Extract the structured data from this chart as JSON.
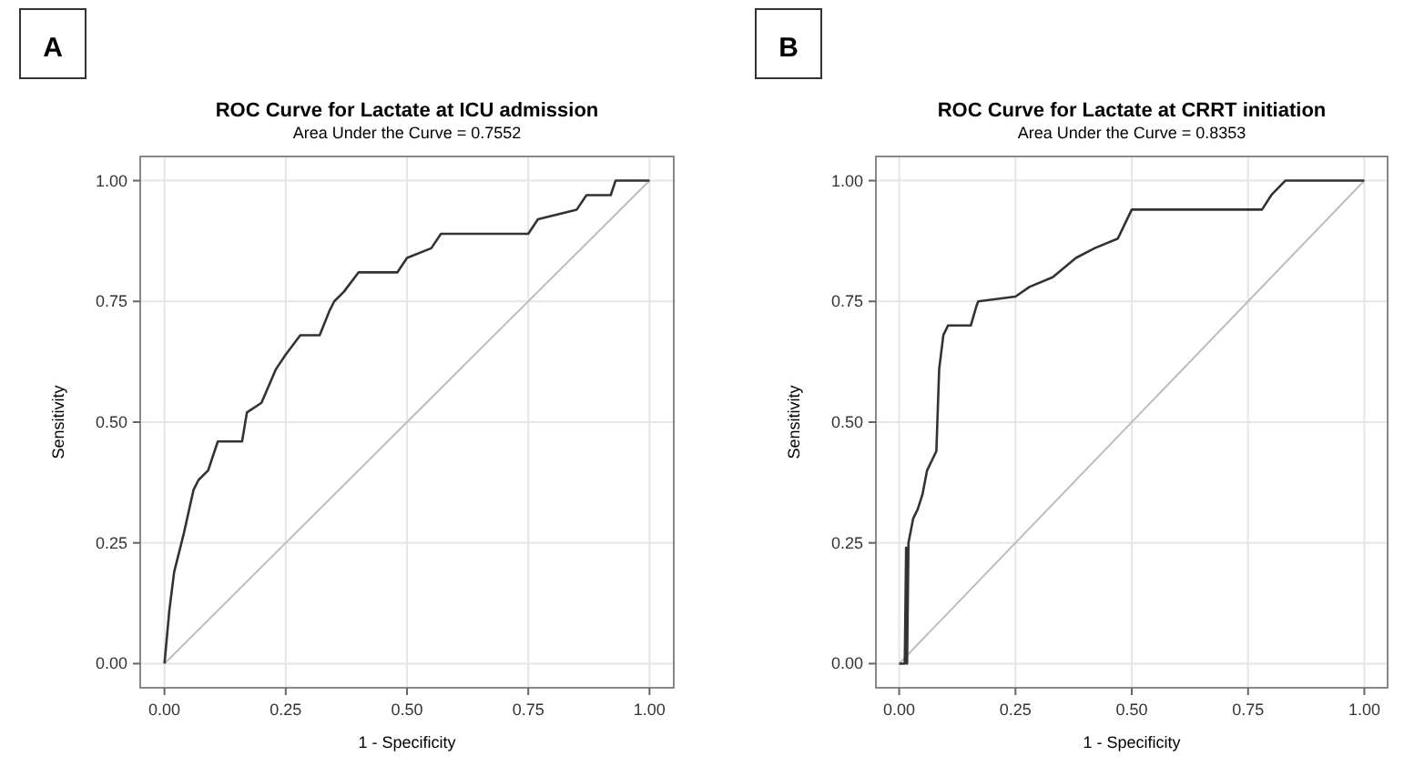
{
  "chart_data": [
    {
      "type": "line",
      "title": "ROC Curve for Lactate at ICU admission",
      "subtitle": "Area Under the Curve = 0.7552",
      "xlabel": "1 - Specificity",
      "ylabel": "Sensitivity",
      "annotations": [
        "A"
      ],
      "grid": true,
      "xlim": [
        -0.05,
        1.05
      ],
      "ylim": [
        -0.05,
        1.05
      ],
      "xticks": [
        {
          "value": 0,
          "label": "0.00"
        },
        {
          "value": 0.25,
          "label": "0.25"
        },
        {
          "value": 0.5,
          "label": "0.50"
        },
        {
          "value": 0.75,
          "label": "0.75"
        },
        {
          "value": 1,
          "label": "1.00"
        }
      ],
      "yticks": [
        {
          "value": 0,
          "label": "0.00"
        },
        {
          "value": 0.25,
          "label": "0.25"
        },
        {
          "value": 0.5,
          "label": "0.50"
        },
        {
          "value": 0.75,
          "label": "0.75"
        },
        {
          "value": 1,
          "label": "1.00"
        }
      ],
      "series": [
        {
          "color": "#bdbdbd",
          "x": [
            0,
            1
          ],
          "values": [
            0,
            1
          ]
        },
        {
          "color": "#333333",
          "x": [
            0,
            0.01,
            0.02,
            0.04,
            0.06,
            0.07,
            0.09,
            0.11,
            0.16,
            0.17,
            0.2,
            0.23,
            0.25,
            0.28,
            0.32,
            0.34,
            0.35,
            0.37,
            0.4,
            0.48,
            0.5,
            0.55,
            0.57,
            0.75,
            0.77,
            0.85,
            0.87,
            0.92,
            0.93,
            1
          ],
          "values": [
            0,
            0.11,
            0.19,
            0.27,
            0.36,
            0.38,
            0.4,
            0.46,
            0.46,
            0.52,
            0.54,
            0.61,
            0.64,
            0.68,
            0.68,
            0.73,
            0.75,
            0.77,
            0.81,
            0.81,
            0.84,
            0.86,
            0.89,
            0.89,
            0.92,
            0.94,
            0.97,
            0.97,
            1,
            1
          ]
        }
      ]
    },
    {
      "type": "line",
      "title": "ROC Curve for Lactate at CRRT initiation",
      "subtitle": "Area Under the Curve = 0.8353",
      "xlabel": "1 - Specificity",
      "ylabel": "Sensitivity",
      "annotations": [
        "B"
      ],
      "grid": true,
      "xlim": [
        -0.05,
        1.05
      ],
      "ylim": [
        -0.05,
        1.05
      ],
      "xticks": [
        {
          "value": 0,
          "label": "0.00"
        },
        {
          "value": 0.25,
          "label": "0.25"
        },
        {
          "value": 0.5,
          "label": "0.50"
        },
        {
          "value": 0.75,
          "label": "0.75"
        },
        {
          "value": 1,
          "label": "1.00"
        }
      ],
      "yticks": [
        {
          "value": 0,
          "label": "0.00"
        },
        {
          "value": 0.25,
          "label": "0.25"
        },
        {
          "value": 0.5,
          "label": "0.50"
        },
        {
          "value": 0.75,
          "label": "0.75"
        },
        {
          "value": 1,
          "label": "1.00"
        }
      ],
      "series": [
        {
          "color": "#bdbdbd",
          "x": [
            0,
            1
          ],
          "values": [
            0,
            1
          ]
        },
        {
          "color": "#333333",
          "x": [
            0,
            0.012,
            0.015,
            0.017,
            0.02,
            0.03,
            0.04,
            0.05,
            0.06,
            0.07,
            0.08,
            0.086,
            0.095,
            0.105,
            0.154,
            0.166,
            0.17,
            0.25,
            0.28,
            0.33,
            0.38,
            0.42,
            0.47,
            0.5,
            0.78,
            0.8,
            0.83,
            1
          ],
          "values": [
            0,
            0,
            0.24,
            0,
            0.25,
            0.3,
            0.32,
            0.35,
            0.4,
            0.42,
            0.44,
            0.61,
            0.68,
            0.7,
            0.7,
            0.74,
            0.75,
            0.76,
            0.78,
            0.8,
            0.84,
            0.86,
            0.88,
            0.94,
            0.94,
            0.97,
            1,
            1
          ]
        }
      ]
    }
  ]
}
